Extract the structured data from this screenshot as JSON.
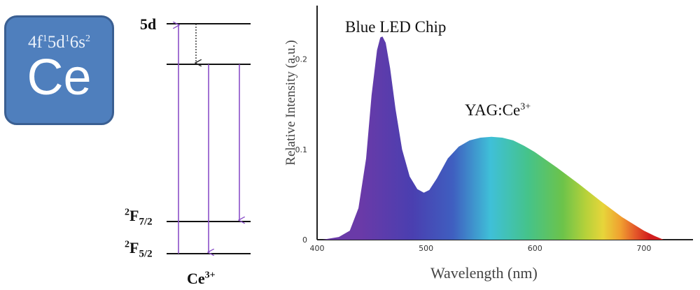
{
  "element_tile": {
    "configuration": [
      "4f",
      "1",
      "5d",
      "1",
      "6s",
      "2"
    ],
    "symbol": "Ce",
    "color": "#4f7fbd"
  },
  "energy_diagram": {
    "levels": {
      "top": "5d",
      "f72_base": "F",
      "f72_sup": "2",
      "f72_sub": "7/2",
      "f52_base": "F",
      "f52_sup": "2",
      "f52_sub": "5/2"
    },
    "ion_base": "Ce",
    "ion_sup": "3+",
    "transition_color": "#8a4fc8"
  },
  "spectrum": {
    "annotations": {
      "blue_led": "Blue LED Chip",
      "yag_base": "YAG:Ce",
      "yag_sup": "3+"
    },
    "xlabel": "Wavelength (nm)",
    "ylabel": "Relative Intensity (a.u.)",
    "x_ticks": [
      "400",
      "500",
      "600",
      "700"
    ],
    "y_ticks": [
      "0",
      "0.1",
      "0.2"
    ]
  },
  "chart_data": {
    "type": "area",
    "xlabel": "Wavelength (nm)",
    "ylabel": "Relative Intensity (a.u.)",
    "xlim": [
      400,
      730
    ],
    "ylim": [
      0,
      0.25
    ],
    "x": [
      405,
      420,
      430,
      438,
      445,
      450,
      455,
      458,
      460,
      463,
      467,
      472,
      478,
      485,
      492,
      498,
      503,
      510,
      520,
      530,
      540,
      550,
      560,
      570,
      580,
      590,
      600,
      620,
      640,
      660,
      680,
      700,
      710,
      718
    ],
    "y": [
      0.0,
      0.003,
      0.01,
      0.035,
      0.09,
      0.16,
      0.21,
      0.224,
      0.225,
      0.218,
      0.19,
      0.145,
      0.1,
      0.07,
      0.056,
      0.052,
      0.055,
      0.068,
      0.09,
      0.103,
      0.11,
      0.113,
      0.114,
      0.113,
      0.11,
      0.104,
      0.097,
      0.08,
      0.062,
      0.043,
      0.025,
      0.01,
      0.004,
      0.0
    ]
  }
}
